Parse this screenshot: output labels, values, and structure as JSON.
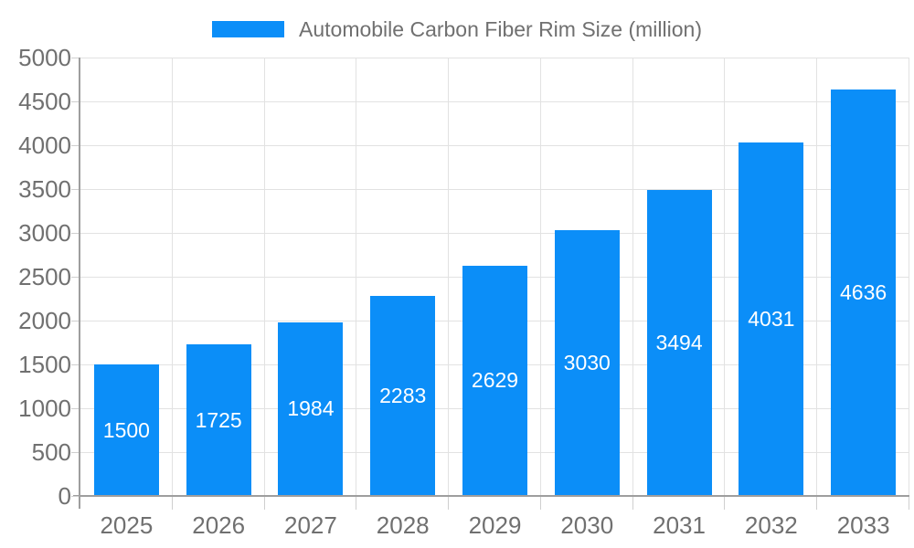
{
  "legend": {
    "label": "Automobile Carbon Fiber Rim Size (million)"
  },
  "colors": {
    "bar": "#0b8ef8",
    "axis": "#9e9e9e",
    "grid": "#e2e2e2",
    "tick": "#cfcfcf",
    "text": "#707070",
    "value_label": "#ffffff",
    "background": "#ffffff"
  },
  "chart_data": {
    "type": "bar",
    "title": "Automobile Carbon Fiber Rim Size (million)",
    "categories": [
      "2025",
      "2026",
      "2027",
      "2028",
      "2029",
      "2030",
      "2031",
      "2032",
      "2033"
    ],
    "values": [
      1500,
      1725,
      1984,
      2283,
      2629,
      3030,
      3494,
      4031,
      4636
    ],
    "series_name": "Automobile Carbon Fiber Rim Size (million)",
    "xlabel": "",
    "ylabel": "",
    "ylim": [
      0,
      5000
    ],
    "ytick_step": 500,
    "yticks": [
      0,
      500,
      1000,
      1500,
      2000,
      2500,
      3000,
      3500,
      4000,
      4500,
      5000
    ],
    "grid": "horizontal-and-vertical",
    "legend_position": "top-center",
    "bar_value_labels": "inside-centered-white"
  }
}
